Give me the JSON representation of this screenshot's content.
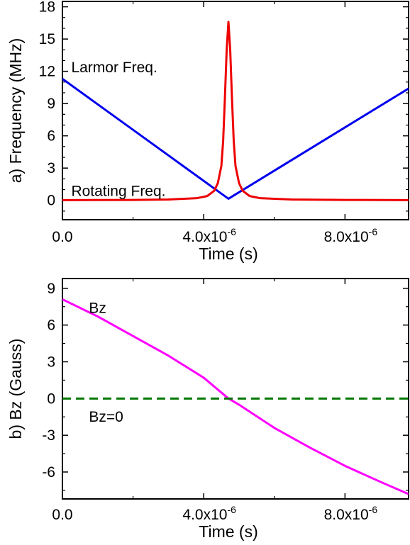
{
  "chart_data": [
    {
      "type": "line",
      "panel": "a",
      "xlabel": "Time (s)",
      "ylabel": "a) Frequency (MHz)",
      "xlim": [
        0,
        9.8e-06
      ],
      "ylim": [
        -1.8,
        18.5
      ],
      "x_ticks": [
        {
          "value": 0,
          "label": "0.0",
          "exp": ""
        },
        {
          "value": 4e-06,
          "label": "4.0x10",
          "exp": "-6"
        },
        {
          "value": 8e-06,
          "label": "8.0x10",
          "exp": "-6"
        }
      ],
      "y_ticks": [
        {
          "value": 0,
          "label": "0"
        },
        {
          "value": 3,
          "label": "3"
        },
        {
          "value": 6,
          "label": "6"
        },
        {
          "value": 9,
          "label": "9"
        },
        {
          "value": 12,
          "label": "12"
        },
        {
          "value": 15,
          "label": "15"
        },
        {
          "value": 18,
          "label": "18"
        }
      ],
      "grid": false,
      "series": [
        {
          "name": "Larmor Freq.",
          "color": "#0000ee",
          "x": [
            0,
            4.7e-06,
            9.8e-06
          ],
          "y": [
            11.3,
            0.15,
            10.4
          ]
        },
        {
          "name": "Rotating Freq.",
          "color": "#ee0000",
          "x": [
            0,
            2e-06,
            3e-06,
            3.8e-06,
            4.1e-06,
            4.3e-06,
            4.4e-06,
            4.5e-06,
            4.55e-06,
            4.6e-06,
            4.65e-06,
            4.7e-06,
            4.75e-06,
            4.8e-06,
            4.85e-06,
            4.9e-06,
            5e-06,
            5.1e-06,
            5.3e-06,
            5.6e-06,
            6.5e-06,
            8e-06,
            9.8e-06
          ],
          "y": [
            0.02,
            0.04,
            0.08,
            0.2,
            0.4,
            0.9,
            1.6,
            3.2,
            5.5,
            9.5,
            14.0,
            16.6,
            14.0,
            9.5,
            5.5,
            3.2,
            1.6,
            0.9,
            0.4,
            0.2,
            0.08,
            0.04,
            0.02
          ]
        }
      ],
      "annotations": [
        {
          "text": "Larmor Freq.",
          "x": 2.5e-07,
          "y": 11.9
        },
        {
          "text": "Rotating Freq.",
          "x": 2.5e-07,
          "y": 0.4
        }
      ]
    },
    {
      "type": "line",
      "panel": "b",
      "xlabel": "Time (s)",
      "ylabel": "b) Bz (Gauss)",
      "xlim": [
        0,
        9.8e-06
      ],
      "ylim": [
        -8.2,
        9.8
      ],
      "x_ticks": [
        {
          "value": 0,
          "label": "0.0",
          "exp": ""
        },
        {
          "value": 4e-06,
          "label": "4.0x10",
          "exp": "-6"
        },
        {
          "value": 8e-06,
          "label": "8.0x10",
          "exp": "-6"
        }
      ],
      "y_ticks": [
        {
          "value": -6,
          "label": "-6"
        },
        {
          "value": -3,
          "label": "-3"
        },
        {
          "value": 0,
          "label": "0"
        },
        {
          "value": 3,
          "label": "3"
        },
        {
          "value": 6,
          "label": "6"
        },
        {
          "value": 9,
          "label": "9"
        }
      ],
      "grid": false,
      "series": [
        {
          "name": "Bz",
          "color": "#ff00ff",
          "dash": "solid",
          "x": [
            0,
            1e-06,
            2e-06,
            3e-06,
            4e-06,
            4.7e-06,
            5e-06,
            6e-06,
            7e-06,
            8e-06,
            9e-06,
            9.8e-06
          ],
          "y": [
            8.1,
            6.7,
            5.1,
            3.5,
            1.7,
            0.0,
            -0.5,
            -2.4,
            -4.0,
            -5.5,
            -6.8,
            -7.8
          ]
        },
        {
          "name": "Bz=0",
          "color": "#007700",
          "dash": "dashed",
          "x": [
            0,
            9.8e-06
          ],
          "y": [
            0,
            0
          ]
        }
      ],
      "annotations": [
        {
          "text": "Bz",
          "x": 7.5e-07,
          "y": 7.0
        },
        {
          "text": "Bz=0",
          "x": 7.5e-07,
          "y": -1.9
        }
      ]
    }
  ]
}
